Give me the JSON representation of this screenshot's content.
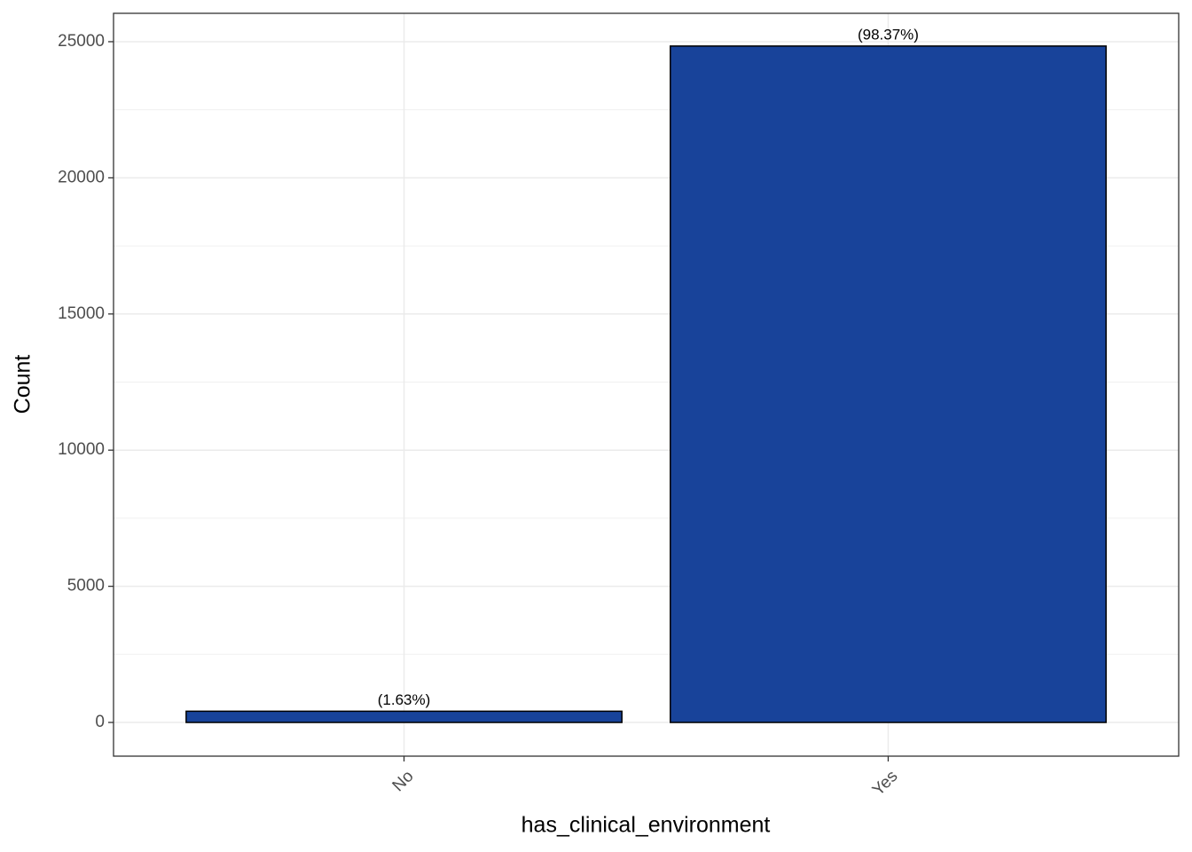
{
  "chart_data": {
    "type": "bar",
    "x_label": "has_clinical_environment",
    "y_label": "Count",
    "categories": [
      "No",
      "Yes"
    ],
    "values": [
      412,
      24840
    ],
    "bar_labels": [
      "(1.63%)",
      "(98.37%)"
    ],
    "color": "#18439a",
    "ylim": [
      -1238,
      26042
    ],
    "yticks": [
      0,
      5000,
      10000,
      15000,
      20000,
      25000
    ],
    "minor_yticks": [
      2500,
      7500,
      12500,
      17500,
      22500
    ],
    "grid": true
  }
}
